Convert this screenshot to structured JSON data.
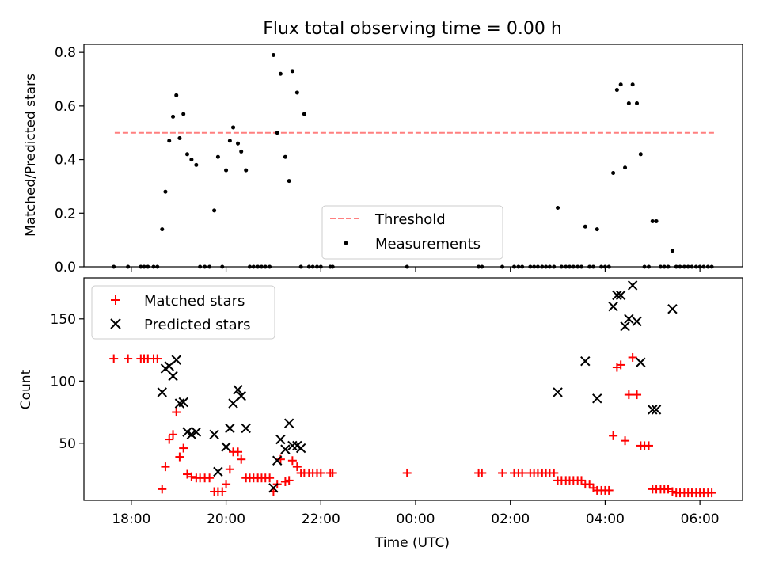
{
  "figure": {
    "title": "Flux total observing time = 0.00 h"
  },
  "chart_data": [
    {
      "type": "scatter",
      "xlabel": "",
      "ylabel": "Matched/Predicted stars",
      "xlim": [
        17.0,
        30.9
      ],
      "ylim": [
        0.0,
        0.83
      ],
      "yticks": [
        "0.0",
        "0.2",
        "0.4",
        "0.6",
        "0.8"
      ],
      "ytick_values": [
        0.0,
        0.2,
        0.4,
        0.6,
        0.8
      ],
      "legend_location": "lower center",
      "threshold": {
        "name": "Threshold",
        "value": 0.5,
        "x_range": [
          17.65,
          30.3
        ],
        "color": "#ff7f7f",
        "style": "dashed"
      },
      "series": [
        {
          "name": "Measurements",
          "marker": "dot",
          "color": "#000000",
          "points": [
            [
              17.63,
              0.0
            ],
            [
              17.93,
              0.0
            ],
            [
              18.2,
              0.0
            ],
            [
              18.27,
              0.0
            ],
            [
              18.35,
              0.0
            ],
            [
              18.47,
              0.0
            ],
            [
              18.55,
              0.0
            ],
            [
              18.65,
              0.14
            ],
            [
              18.72,
              0.28
            ],
            [
              18.8,
              0.47
            ],
            [
              18.88,
              0.56
            ],
            [
              18.95,
              0.64
            ],
            [
              19.02,
              0.48
            ],
            [
              19.1,
              0.57
            ],
            [
              19.18,
              0.42
            ],
            [
              19.27,
              0.4
            ],
            [
              19.37,
              0.38
            ],
            [
              19.45,
              0.0
            ],
            [
              19.55,
              0.0
            ],
            [
              19.65,
              0.0
            ],
            [
              19.75,
              0.21
            ],
            [
              19.83,
              0.41
            ],
            [
              19.92,
              0.0
            ],
            [
              20.0,
              0.36
            ],
            [
              20.08,
              0.47
            ],
            [
              20.15,
              0.52
            ],
            [
              20.25,
              0.46
            ],
            [
              20.32,
              0.43
            ],
            [
              20.42,
              0.36
            ],
            [
              20.5,
              0.0
            ],
            [
              20.58,
              0.0
            ],
            [
              20.67,
              0.0
            ],
            [
              20.75,
              0.0
            ],
            [
              20.83,
              0.0
            ],
            [
              20.92,
              0.0
            ],
            [
              21.0,
              0.79
            ],
            [
              21.08,
              0.5
            ],
            [
              21.15,
              0.72
            ],
            [
              21.25,
              0.41
            ],
            [
              21.33,
              0.32
            ],
            [
              21.4,
              0.73
            ],
            [
              21.5,
              0.65
            ],
            [
              21.58,
              0.0
            ],
            [
              21.65,
              0.57
            ],
            [
              21.75,
              0.0
            ],
            [
              21.83,
              0.0
            ],
            [
              21.92,
              0.0
            ],
            [
              22.0,
              0.0
            ],
            [
              22.2,
              0.0
            ],
            [
              22.25,
              0.0
            ],
            [
              23.82,
              0.0
            ],
            [
              25.33,
              0.0
            ],
            [
              25.4,
              0.0
            ],
            [
              25.83,
              0.0
            ],
            [
              26.08,
              0.0
            ],
            [
              26.17,
              0.0
            ],
            [
              26.25,
              0.0
            ],
            [
              26.42,
              0.0
            ],
            [
              26.5,
              0.0
            ],
            [
              26.58,
              0.0
            ],
            [
              26.67,
              0.0
            ],
            [
              26.75,
              0.0
            ],
            [
              26.83,
              0.0
            ],
            [
              26.92,
              0.0
            ],
            [
              27.0,
              0.22
            ],
            [
              27.08,
              0.0
            ],
            [
              27.17,
              0.0
            ],
            [
              27.25,
              0.0
            ],
            [
              27.33,
              0.0
            ],
            [
              27.42,
              0.0
            ],
            [
              27.5,
              0.0
            ],
            [
              27.58,
              0.15
            ],
            [
              27.67,
              0.0
            ],
            [
              27.75,
              0.0
            ],
            [
              27.83,
              0.14
            ],
            [
              27.92,
              0.0
            ],
            [
              28.0,
              0.0
            ],
            [
              28.08,
              0.0
            ],
            [
              28.17,
              0.35
            ],
            [
              28.25,
              0.66
            ],
            [
              28.33,
              0.68
            ],
            [
              28.42,
              0.37
            ],
            [
              28.5,
              0.61
            ],
            [
              28.58,
              0.68
            ],
            [
              28.67,
              0.61
            ],
            [
              28.75,
              0.42
            ],
            [
              28.83,
              0.0
            ],
            [
              28.92,
              0.0
            ],
            [
              29.0,
              0.17
            ],
            [
              29.08,
              0.17
            ],
            [
              29.17,
              0.0
            ],
            [
              29.25,
              0.0
            ],
            [
              29.33,
              0.0
            ],
            [
              29.42,
              0.06
            ],
            [
              29.5,
              0.0
            ],
            [
              29.58,
              0.0
            ],
            [
              29.67,
              0.0
            ],
            [
              29.75,
              0.0
            ],
            [
              29.83,
              0.0
            ],
            [
              29.92,
              0.0
            ],
            [
              30.0,
              0.0
            ],
            [
              30.08,
              0.0
            ],
            [
              30.17,
              0.0
            ],
            [
              30.25,
              0.0
            ]
          ]
        }
      ]
    },
    {
      "type": "scatter",
      "xlabel": "Time (UTC)",
      "ylabel": "Count",
      "xlim": [
        17.0,
        30.9
      ],
      "ylim": [
        4,
        183
      ],
      "yticks": [
        "50",
        "100",
        "150"
      ],
      "ytick_values": [
        50,
        100,
        150
      ],
      "xticks": [
        "18:00",
        "20:00",
        "22:00",
        "00:00",
        "02:00",
        "04:00",
        "06:00"
      ],
      "xtick_values": [
        18,
        20,
        22,
        24,
        26,
        28,
        30
      ],
      "legend_location": "upper left",
      "series": [
        {
          "name": "Matched stars",
          "marker": "plus",
          "color": "#ff0000",
          "points": [
            [
              17.63,
              118
            ],
            [
              17.93,
              118
            ],
            [
              18.2,
              118
            ],
            [
              18.27,
              118
            ],
            [
              18.35,
              118
            ],
            [
              18.47,
              118
            ],
            [
              18.55,
              118
            ],
            [
              18.65,
              13
            ],
            [
              18.72,
              31
            ],
            [
              18.8,
              53
            ],
            [
              18.88,
              57
            ],
            [
              18.95,
              75
            ],
            [
              19.02,
              39
            ],
            [
              19.1,
              46
            ],
            [
              19.18,
              25
            ],
            [
              19.27,
              23
            ],
            [
              19.37,
              22
            ],
            [
              19.45,
              22
            ],
            [
              19.55,
              22
            ],
            [
              19.65,
              22
            ],
            [
              19.75,
              11
            ],
            [
              19.83,
              11
            ],
            [
              19.92,
              11
            ],
            [
              20.0,
              17
            ],
            [
              20.08,
              29
            ],
            [
              20.15,
              43
            ],
            [
              20.25,
              43
            ],
            [
              20.32,
              37
            ],
            [
              20.42,
              22
            ],
            [
              20.5,
              22
            ],
            [
              20.58,
              22
            ],
            [
              20.67,
              22
            ],
            [
              20.75,
              22
            ],
            [
              20.83,
              22
            ],
            [
              20.92,
              22
            ],
            [
              21.0,
              11
            ],
            [
              21.08,
              17
            ],
            [
              21.15,
              37
            ],
            [
              21.25,
              19
            ],
            [
              21.33,
              20
            ],
            [
              21.4,
              36
            ],
            [
              21.5,
              31
            ],
            [
              21.58,
              26
            ],
            [
              21.65,
              26
            ],
            [
              21.75,
              26
            ],
            [
              21.83,
              26
            ],
            [
              21.92,
              26
            ],
            [
              22.0,
              26
            ],
            [
              22.2,
              26
            ],
            [
              22.25,
              26
            ],
            [
              23.82,
              26
            ],
            [
              25.33,
              26
            ],
            [
              25.4,
              26
            ],
            [
              25.83,
              26
            ],
            [
              26.08,
              26
            ],
            [
              26.17,
              26
            ],
            [
              26.25,
              26
            ],
            [
              26.42,
              26
            ],
            [
              26.5,
              26
            ],
            [
              26.58,
              26
            ],
            [
              26.67,
              26
            ],
            [
              26.75,
              26
            ],
            [
              26.83,
              26
            ],
            [
              26.92,
              26
            ],
            [
              27.0,
              20
            ],
            [
              27.08,
              20
            ],
            [
              27.17,
              20
            ],
            [
              27.25,
              20
            ],
            [
              27.33,
              20
            ],
            [
              27.42,
              20
            ],
            [
              27.5,
              20
            ],
            [
              27.58,
              17
            ],
            [
              27.67,
              17
            ],
            [
              27.75,
              14
            ],
            [
              27.83,
              12
            ],
            [
              27.92,
              12
            ],
            [
              28.0,
              12
            ],
            [
              28.08,
              12
            ],
            [
              28.17,
              56
            ],
            [
              28.25,
              111
            ],
            [
              28.33,
              113
            ],
            [
              28.42,
              52
            ],
            [
              28.5,
              89
            ],
            [
              28.58,
              119
            ],
            [
              28.67,
              89
            ],
            [
              28.75,
              48
            ],
            [
              28.83,
              48
            ],
            [
              28.92,
              48
            ],
            [
              29.0,
              13
            ],
            [
              29.08,
              13
            ],
            [
              29.17,
              13
            ],
            [
              29.25,
              13
            ],
            [
              29.33,
              13
            ],
            [
              29.42,
              11
            ],
            [
              29.5,
              10
            ],
            [
              29.58,
              10
            ],
            [
              29.67,
              10
            ],
            [
              29.75,
              10
            ],
            [
              29.83,
              10
            ],
            [
              29.92,
              10
            ],
            [
              30.0,
              10
            ],
            [
              30.08,
              10
            ],
            [
              30.17,
              10
            ],
            [
              30.25,
              10
            ]
          ]
        },
        {
          "name": "Predicted stars",
          "marker": "x",
          "color": "#000000",
          "points": [
            [
              18.65,
              91
            ],
            [
              18.72,
              110
            ],
            [
              18.8,
              112
            ],
            [
              18.88,
              104
            ],
            [
              18.95,
              117
            ],
            [
              19.02,
              82
            ],
            [
              19.1,
              83
            ],
            [
              19.18,
              59
            ],
            [
              19.27,
              57
            ],
            [
              19.37,
              59
            ],
            [
              19.75,
              57
            ],
            [
              19.83,
              27
            ],
            [
              20.0,
              47
            ],
            [
              20.08,
              62
            ],
            [
              20.15,
              82
            ],
            [
              20.25,
              93
            ],
            [
              20.32,
              88
            ],
            [
              20.42,
              62
            ],
            [
              21.0,
              14
            ],
            [
              21.08,
              36
            ],
            [
              21.15,
              53
            ],
            [
              21.25,
              45
            ],
            [
              21.33,
              66
            ],
            [
              21.4,
              48
            ],
            [
              21.5,
              48
            ],
            [
              21.58,
              46
            ],
            [
              27.0,
              91
            ],
            [
              27.58,
              116
            ],
            [
              27.83,
              86
            ],
            [
              28.17,
              160
            ],
            [
              28.25,
              169
            ],
            [
              28.33,
              169
            ],
            [
              28.42,
              144
            ],
            [
              28.5,
              150
            ],
            [
              28.58,
              177
            ],
            [
              28.67,
              148
            ],
            [
              28.75,
              115
            ],
            [
              29.0,
              77
            ],
            [
              29.08,
              77
            ],
            [
              29.42,
              158
            ]
          ]
        }
      ]
    }
  ]
}
